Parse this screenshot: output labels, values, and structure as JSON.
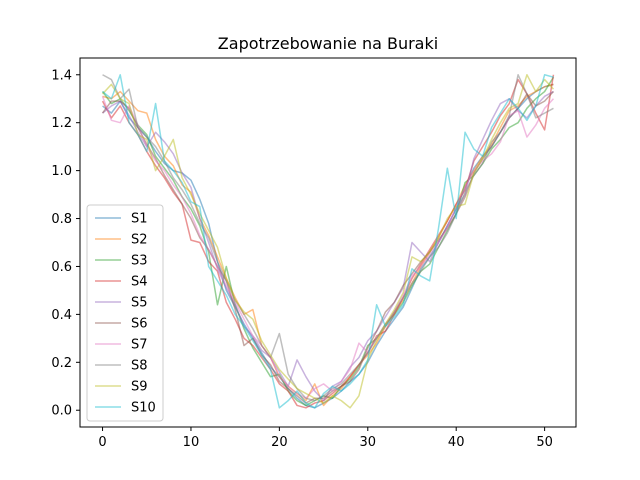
{
  "chart_data": {
    "type": "line",
    "title": "Zapotrzebowanie na Buraki",
    "xlabel": "",
    "ylabel": "",
    "xlim": [
      -2.55,
      53.55
    ],
    "ylim": [
      -0.07,
      1.47
    ],
    "xticks": [
      0,
      10,
      20,
      30,
      40,
      50
    ],
    "yticks": [
      0.0,
      0.2,
      0.4,
      0.6,
      0.8,
      1.0,
      1.2,
      1.4
    ],
    "ytick_labels": [
      "0.0",
      "0.2",
      "0.4",
      "0.6",
      "0.8",
      "1.0",
      "1.2",
      "1.4"
    ],
    "grid": false,
    "legend_position": "center-left",
    "x": [
      0,
      1,
      2,
      3,
      4,
      5,
      6,
      7,
      8,
      9,
      10,
      11,
      12,
      13,
      14,
      15,
      16,
      17,
      18,
      19,
      20,
      21,
      22,
      23,
      24,
      25,
      26,
      27,
      28,
      29,
      30,
      31,
      32,
      33,
      34,
      35,
      36,
      37,
      38,
      39,
      40,
      41,
      42,
      43,
      44,
      45,
      46,
      47,
      48,
      49,
      50,
      51
    ],
    "series": [
      {
        "name": "S1",
        "color": "#1f77b4",
        "values": [
          1.27,
          1.24,
          1.29,
          1.22,
          1.18,
          1.14,
          1.08,
          1.03,
          1.0,
          0.99,
          0.96,
          0.88,
          0.78,
          0.62,
          0.5,
          0.43,
          0.36,
          0.3,
          0.24,
          0.18,
          0.14,
          0.09,
          0.05,
          0.02,
          0.01,
          0.03,
          0.05,
          0.08,
          0.12,
          0.15,
          0.2,
          0.27,
          0.33,
          0.38,
          0.43,
          0.51,
          0.59,
          0.64,
          0.7,
          0.77,
          0.84,
          0.93,
          1.01,
          1.06,
          1.1,
          1.16,
          1.22,
          1.26,
          1.3,
          1.33,
          1.35,
          1.36
        ]
      },
      {
        "name": "S2",
        "color": "#ff7f0e",
        "values": [
          1.31,
          1.3,
          1.33,
          1.29,
          1.25,
          1.24,
          1.13,
          1.06,
          1.02,
          0.94,
          0.91,
          0.8,
          0.73,
          0.64,
          0.55,
          0.47,
          0.4,
          0.42,
          0.27,
          0.22,
          0.14,
          0.1,
          0.07,
          0.04,
          0.11,
          0.02,
          0.06,
          0.09,
          0.14,
          0.19,
          0.23,
          0.28,
          0.35,
          0.41,
          0.46,
          0.53,
          0.6,
          0.66,
          0.72,
          0.79,
          0.86,
          0.94,
          1.0,
          1.06,
          1.11,
          1.18,
          1.25,
          1.27,
          1.31,
          1.33,
          1.35,
          1.36
        ]
      },
      {
        "name": "S3",
        "color": "#2ca02c",
        "values": [
          1.33,
          1.28,
          1.3,
          1.25,
          1.19,
          1.15,
          1.06,
          1.01,
          0.96,
          0.89,
          0.84,
          0.77,
          0.66,
          0.44,
          0.6,
          0.44,
          0.34,
          0.26,
          0.2,
          0.14,
          0.15,
          0.08,
          0.04,
          0.02,
          0.04,
          0.06,
          0.05,
          0.1,
          0.13,
          0.18,
          0.27,
          0.3,
          0.36,
          0.4,
          0.45,
          0.52,
          0.58,
          0.61,
          0.68,
          0.75,
          0.82,
          0.95,
          0.98,
          1.03,
          1.09,
          1.13,
          1.18,
          1.2,
          1.26,
          1.3,
          1.33,
          1.39
        ]
      },
      {
        "name": "S4",
        "color": "#d62728",
        "values": [
          1.29,
          1.22,
          1.27,
          1.2,
          1.15,
          1.08,
          1.02,
          0.97,
          0.91,
          0.86,
          0.71,
          0.7,
          0.62,
          0.58,
          0.45,
          0.38,
          0.3,
          0.27,
          0.22,
          0.17,
          0.11,
          0.08,
          0.02,
          0.01,
          0.03,
          0.04,
          0.07,
          0.1,
          0.14,
          0.19,
          0.24,
          0.31,
          0.33,
          0.4,
          0.47,
          0.55,
          0.61,
          0.67,
          0.73,
          0.79,
          0.86,
          0.92,
          1.04,
          1.1,
          1.16,
          1.23,
          1.28,
          1.38,
          1.32,
          1.24,
          1.17,
          1.4
        ]
      },
      {
        "name": "S5",
        "color": "#9467bd",
        "values": [
          1.24,
          1.27,
          1.29,
          1.23,
          1.16,
          1.1,
          1.16,
          1.12,
          1.07,
          0.99,
          0.93,
          0.8,
          0.7,
          0.59,
          0.51,
          0.44,
          0.35,
          0.31,
          0.25,
          0.22,
          0.16,
          0.1,
          0.21,
          0.14,
          0.08,
          0.04,
          0.1,
          0.12,
          0.18,
          0.22,
          0.29,
          0.33,
          0.39,
          0.45,
          0.51,
          0.7,
          0.66,
          0.62,
          0.7,
          0.77,
          0.84,
          0.9,
          1.05,
          1.13,
          1.21,
          1.28,
          1.3,
          1.25,
          1.22,
          1.27,
          1.31,
          1.33
        ]
      },
      {
        "name": "S6",
        "color": "#8c564b",
        "values": [
          1.24,
          1.29,
          1.29,
          1.26,
          1.18,
          1.11,
          1.05,
          0.98,
          0.92,
          0.86,
          0.8,
          0.72,
          0.67,
          0.6,
          0.54,
          0.42,
          0.27,
          0.3,
          0.23,
          0.19,
          0.12,
          0.09,
          0.06,
          0.03,
          0.05,
          0.05,
          0.08,
          0.1,
          0.12,
          0.17,
          0.26,
          0.33,
          0.41,
          0.45,
          0.52,
          0.57,
          0.62,
          0.66,
          0.71,
          0.76,
          0.82,
          0.89,
          0.99,
          1.05,
          1.1,
          1.16,
          1.22,
          1.26,
          1.32,
          1.27,
          1.29,
          1.33
        ]
      },
      {
        "name": "S7",
        "color": "#e377c2",
        "values": [
          1.31,
          1.21,
          1.2,
          1.27,
          1.19,
          1.1,
          1.04,
          1.0,
          0.94,
          0.89,
          0.82,
          0.73,
          0.67,
          0.6,
          0.52,
          0.45,
          0.38,
          0.31,
          0.27,
          0.22,
          0.14,
          0.1,
          0.07,
          0.05,
          0.09,
          0.11,
          0.08,
          0.12,
          0.17,
          0.28,
          0.24,
          0.3,
          0.36,
          0.41,
          0.48,
          0.56,
          0.6,
          0.65,
          0.7,
          0.76,
          0.85,
          0.93,
          1.0,
          1.04,
          1.07,
          1.12,
          1.23,
          1.25,
          1.14,
          1.19,
          1.26,
          1.3
        ]
      },
      {
        "name": "S8",
        "color": "#7f7f7f",
        "values": [
          1.4,
          1.38,
          1.3,
          1.34,
          1.18,
          1.14,
          1.1,
          1.04,
          0.97,
          0.92,
          0.86,
          0.78,
          0.72,
          0.62,
          0.54,
          0.46,
          0.4,
          0.34,
          0.27,
          0.22,
          0.32,
          0.15,
          0.09,
          0.05,
          0.04,
          0.06,
          0.09,
          0.11,
          0.15,
          0.19,
          0.24,
          0.3,
          0.35,
          0.41,
          0.47,
          0.53,
          0.58,
          0.64,
          0.68,
          0.74,
          0.82,
          0.91,
          0.98,
          1.03,
          1.12,
          1.16,
          1.23,
          1.4,
          1.32,
          1.22,
          1.24,
          1.26
        ]
      },
      {
        "name": "S9",
        "color": "#bcbd22",
        "values": [
          1.32,
          1.36,
          1.3,
          1.28,
          1.15,
          1.13,
          1.0,
          1.06,
          1.13,
          0.97,
          0.9,
          0.82,
          0.75,
          0.68,
          0.55,
          0.46,
          0.41,
          0.38,
          0.29,
          0.23,
          0.17,
          0.13,
          0.09,
          0.07,
          0.05,
          0.03,
          0.06,
          0.04,
          0.01,
          0.06,
          0.21,
          0.29,
          0.36,
          0.42,
          0.49,
          0.64,
          0.62,
          0.66,
          0.72,
          0.8,
          0.85,
          0.86,
          0.99,
          1.05,
          1.13,
          1.2,
          1.26,
          1.28,
          1.4,
          1.33,
          1.38,
          1.34
        ]
      },
      {
        "name": "S10",
        "color": "#17becf",
        "values": [
          1.33,
          1.3,
          1.4,
          1.2,
          1.15,
          1.08,
          1.28,
          1.04,
          1.0,
          0.95,
          0.87,
          0.85,
          0.6,
          0.54,
          0.48,
          0.4,
          0.35,
          0.29,
          0.23,
          0.17,
          0.01,
          0.04,
          0.08,
          0.03,
          0.01,
          0.07,
          0.1,
          0.08,
          0.11,
          0.15,
          0.21,
          0.44,
          0.35,
          0.39,
          0.44,
          0.59,
          0.56,
          0.54,
          0.76,
          1.01,
          0.8,
          1.16,
          1.09,
          1.06,
          1.18,
          1.24,
          1.3,
          1.26,
          1.21,
          1.27,
          1.4,
          1.39
        ]
      }
    ]
  }
}
